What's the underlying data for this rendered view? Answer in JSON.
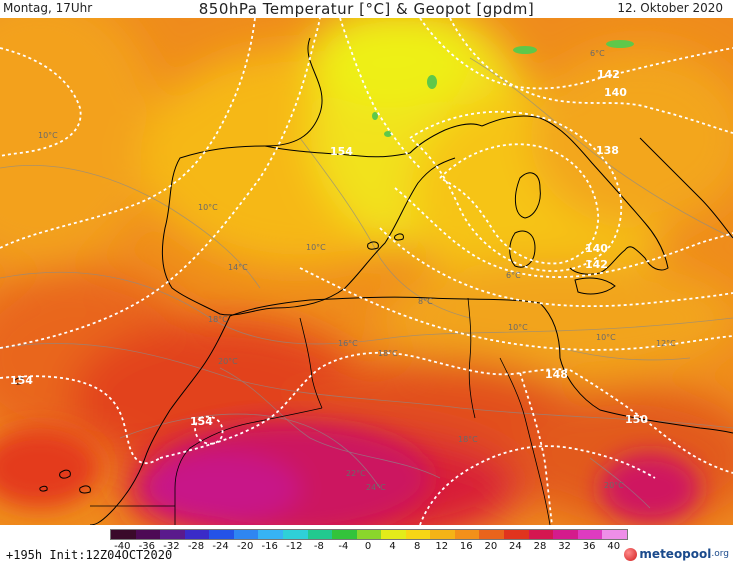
{
  "header": {
    "valid_time": "Montag, 17Uhr",
    "title": "850hPa Temperatur [°C] & Geopot [gpdm]",
    "date": "12. Oktober 2020"
  },
  "footer": {
    "run_info": "+195h Init:12Z04OCT2020",
    "logo_text": "meteopool",
    "logo_tld": ".org"
  },
  "legend": {
    "ticks": [
      "-40",
      "-36",
      "-32",
      "-28",
      "-24",
      "-20",
      "-16",
      "-12",
      "-8",
      "-4",
      "0",
      "4",
      "8",
      "12",
      "16",
      "20",
      "24",
      "28",
      "32",
      "36",
      "40"
    ],
    "colors": [
      "#3a0a2a",
      "#4d0a55",
      "#5a1a8c",
      "#3a2bc8",
      "#2453e8",
      "#2f86f2",
      "#37b3f5",
      "#2fd0d8",
      "#22c98f",
      "#33c33b",
      "#8ad62c",
      "#e3ec1a",
      "#f7d615",
      "#f5b317",
      "#f3901a",
      "#e9641c",
      "#e0341e",
      "#d51650",
      "#d41b8c",
      "#de3bc0",
      "#ee8ee8"
    ]
  },
  "map": {
    "geopotential_labels": [
      {
        "text": "142"
      },
      {
        "text": "140"
      },
      {
        "text": "138"
      },
      {
        "text": "140"
      },
      {
        "text": "142"
      },
      {
        "text": "154"
      },
      {
        "text": "154"
      },
      {
        "text": "154"
      },
      {
        "text": "148"
      },
      {
        "text": "150"
      }
    ],
    "temperature_labels": [
      {
        "text": "10°C"
      },
      {
        "text": "10°C"
      },
      {
        "text": "10°C"
      },
      {
        "text": "14°C"
      },
      {
        "text": "18°C"
      },
      {
        "text": "20°C"
      },
      {
        "text": "16°C"
      },
      {
        "text": "18°C"
      },
      {
        "text": "22°C"
      },
      {
        "text": "24°C"
      },
      {
        "text": "18°C"
      },
      {
        "text": "10°C"
      },
      {
        "text": "12°C"
      },
      {
        "text": "20°C"
      },
      {
        "text": "6°C"
      },
      {
        "text": "8°C"
      },
      {
        "text": "10°C"
      },
      {
        "text": "6°C"
      }
    ]
  }
}
